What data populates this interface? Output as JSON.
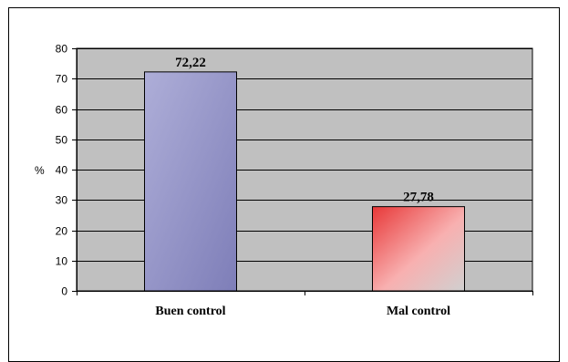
{
  "chart_data": {
    "type": "bar",
    "title": "",
    "xlabel": "",
    "ylabel": "%",
    "categories": [
      "Buen control",
      "Mal control"
    ],
    "values": [
      72.22,
      27.78
    ],
    "value_labels": [
      "72,22",
      "27,78"
    ],
    "ylim": [
      0,
      80
    ],
    "yticks": [
      0,
      10,
      20,
      30,
      40,
      50,
      60,
      70,
      80
    ],
    "grid": true,
    "legend": "none",
    "colors": {
      "plot_background": "#c0c0c0",
      "bar_1": [
        "#aeaed8",
        "#7e7eb8"
      ],
      "bar_2": [
        "#e83838",
        "#f8b0b0",
        "#d0d0d0"
      ],
      "frame": "#000000"
    }
  }
}
